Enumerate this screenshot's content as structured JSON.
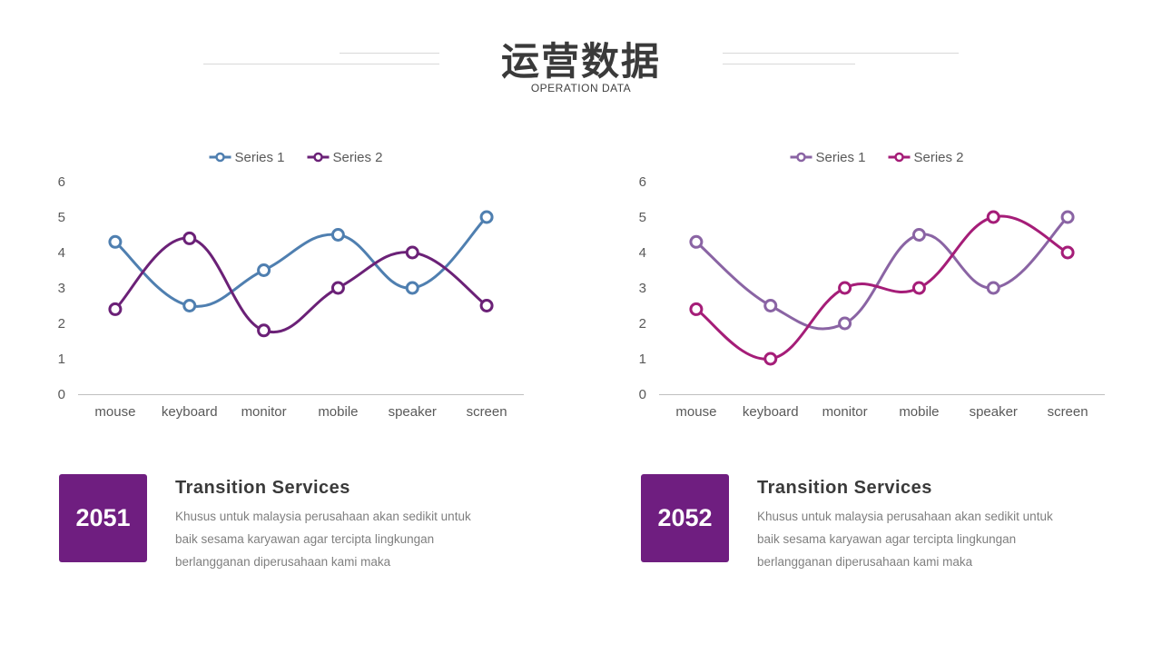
{
  "header": {
    "title": "运营数据",
    "subtitle": "OPERATION DATA"
  },
  "chart_data": [
    {
      "type": "line",
      "categories": [
        "mouse",
        "keyboard",
        "monitor",
        "mobile",
        "speaker",
        "screen"
      ],
      "series": [
        {
          "name": "Series 1",
          "values": [
            4.3,
            2.5,
            3.5,
            4.5,
            3.0,
            5.0
          ],
          "color": "#4f7fb0"
        },
        {
          "name": "Series 2",
          "values": [
            2.4,
            4.4,
            1.8,
            3.0,
            4.0,
            2.5
          ],
          "color": "#6b2177"
        }
      ],
      "ylim": [
        0,
        6
      ],
      "yticks": [
        "0",
        "1",
        "2",
        "3",
        "4",
        "5",
        "6"
      ],
      "legend": "top-center",
      "grid": false,
      "smooth": true
    },
    {
      "type": "line",
      "categories": [
        "mouse",
        "keyboard",
        "monitor",
        "mobile",
        "speaker",
        "screen"
      ],
      "series": [
        {
          "name": "Series 1",
          "values": [
            4.3,
            2.5,
            2.0,
            4.5,
            3.0,
            5.0
          ],
          "color": "#8a64a4"
        },
        {
          "name": "Series 2",
          "values": [
            2.4,
            1.0,
            3.0,
            3.0,
            5.0,
            4.0
          ],
          "color": "#a51d78"
        }
      ],
      "ylim": [
        0,
        6
      ],
      "yticks": [
        "0",
        "1",
        "2",
        "3",
        "4",
        "5",
        "6"
      ],
      "legend": "top-center",
      "grid": false,
      "smooth": true
    }
  ],
  "cards": [
    {
      "year": "2051",
      "title": "Transition Services",
      "lines": [
        "Khusus untuk malaysia perusahaan akan sedikit untuk",
        "baik sesama karyawan agar tercipta lingkungan",
        "berlangganan diperusahaan kami maka"
      ]
    },
    {
      "year": "2052",
      "title": "Transition Services",
      "lines": [
        "Khusus untuk malaysia perusahaan akan sedikit untuk",
        "baik sesama karyawan agar tercipta lingkungan",
        "berlangganan diperusahaan kami maka"
      ]
    }
  ],
  "colors": {
    "accent": "#6f1e80",
    "text": "#3a3a3a",
    "muted": "#7f7f7f",
    "axis": "#bfbfbf"
  }
}
